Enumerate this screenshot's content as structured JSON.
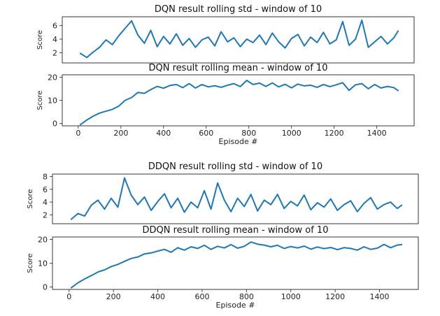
{
  "chart_data": [
    {
      "type": "line",
      "title": "DQN result rolling std - window of 10",
      "ylabel": "Score",
      "xlabel": "",
      "xlim": [
        -75,
        1575
      ],
      "ylim": [
        0.5,
        7.3
      ],
      "yticks": [
        2,
        4,
        6
      ],
      "xticks": [],
      "series_color": "#1f77b4",
      "series": [
        {
          "x": [
            10,
            40,
            70,
            100,
            130,
            160,
            190,
            220,
            250,
            280,
            310,
            340,
            370,
            400,
            430,
            460,
            490,
            520,
            550,
            580,
            610,
            640,
            670,
            700,
            730,
            760,
            790,
            820,
            850,
            880,
            910,
            940,
            970,
            1000,
            1030,
            1060,
            1090,
            1120,
            1150,
            1180,
            1210,
            1240,
            1270,
            1300,
            1330,
            1360,
            1390,
            1420,
            1450,
            1480,
            1500
          ],
          "values": [
            1.9,
            1.3,
            2.1,
            2.8,
            3.9,
            3.2,
            4.5,
            5.6,
            6.7,
            4.6,
            3.4,
            5.3,
            2.9,
            4.4,
            3.3,
            4.8,
            3.1,
            4.1,
            2.8,
            3.9,
            4.3,
            3.0,
            5.1,
            3.6,
            4.2,
            2.9,
            4.0,
            3.5,
            4.6,
            3.2,
            4.9,
            3.6,
            2.7,
            4.1,
            4.7,
            3.0,
            4.3,
            3.5,
            5.0,
            3.3,
            3.9,
            6.6,
            3.1,
            4.0,
            6.8,
            2.8,
            3.6,
            4.4,
            3.3,
            4.2,
            5.2
          ]
        }
      ]
    },
    {
      "type": "line",
      "title": "DQN result rolling mean - window of 10",
      "ylabel": "Score",
      "xlabel": "Episode #",
      "xlim": [
        -75,
        1575
      ],
      "ylim": [
        -1,
        21
      ],
      "yticks": [
        0,
        10,
        20
      ],
      "xticks": [
        0,
        200,
        400,
        600,
        800,
        1000,
        1200,
        1400
      ],
      "series_color": "#1f77b4",
      "series": [
        {
          "x": [
            10,
            40,
            70,
            100,
            130,
            160,
            190,
            220,
            250,
            280,
            310,
            340,
            370,
            400,
            430,
            460,
            490,
            520,
            550,
            580,
            610,
            640,
            670,
            700,
            730,
            760,
            790,
            820,
            850,
            880,
            910,
            940,
            970,
            1000,
            1030,
            1060,
            1090,
            1120,
            1150,
            1180,
            1210,
            1240,
            1270,
            1300,
            1330,
            1360,
            1390,
            1420,
            1450,
            1480,
            1500
          ],
          "values": [
            -0.5,
            1.5,
            3.2,
            4.5,
            5.3,
            6.1,
            7.5,
            10.0,
            11.2,
            13.4,
            13.0,
            14.6,
            16.0,
            15.2,
            16.4,
            16.8,
            15.5,
            17.2,
            15.3,
            16.8,
            15.8,
            16.3,
            15.6,
            16.5,
            17.2,
            15.9,
            18.6,
            16.8,
            17.4,
            16.0,
            17.5,
            15.8,
            16.9,
            15.4,
            17.0,
            16.2,
            16.5,
            15.6,
            16.8,
            15.9,
            16.7,
            17.6,
            14.3,
            16.7,
            17.2,
            15.0,
            16.8,
            15.3,
            16.0,
            15.5,
            14.2
          ]
        }
      ]
    },
    {
      "type": "line",
      "title": "DDQN result rolling std - window of 10",
      "ylabel": "Score",
      "xlabel": "",
      "xlim": [
        -75,
        1575
      ],
      "ylim": [
        0.6,
        8.4
      ],
      "yticks": [
        2,
        4,
        6,
        8
      ],
      "xticks": [],
      "series_color": "#1f77b4",
      "series": [
        {
          "x": [
            10,
            40,
            70,
            100,
            130,
            160,
            190,
            220,
            250,
            280,
            310,
            340,
            370,
            400,
            430,
            460,
            490,
            520,
            550,
            580,
            610,
            640,
            670,
            700,
            730,
            760,
            790,
            820,
            850,
            880,
            910,
            940,
            970,
            1000,
            1030,
            1060,
            1090,
            1120,
            1150,
            1180,
            1210,
            1240,
            1270,
            1300,
            1330,
            1360,
            1390,
            1420,
            1450,
            1480,
            1500
          ],
          "values": [
            1.3,
            2.2,
            1.8,
            3.5,
            4.3,
            2.9,
            4.6,
            3.2,
            7.8,
            5.1,
            3.6,
            4.8,
            2.7,
            4.1,
            5.3,
            3.1,
            4.6,
            2.4,
            4.0,
            3.1,
            5.8,
            2.9,
            7.0,
            4.3,
            2.5,
            4.6,
            3.3,
            5.2,
            2.6,
            4.3,
            3.6,
            5.2,
            3.0,
            4.1,
            3.4,
            5.1,
            2.8,
            3.9,
            3.2,
            4.5,
            2.7,
            3.6,
            4.2,
            2.5,
            3.8,
            4.7,
            2.9,
            3.6,
            4.0,
            3.0,
            3.5
          ]
        }
      ]
    },
    {
      "type": "line",
      "title": "DDQN result rolling mean - window of 10",
      "ylabel": "Score",
      "xlabel": "Episode #",
      "xlim": [
        -75,
        1575
      ],
      "ylim": [
        -1,
        21
      ],
      "yticks": [
        0,
        10,
        20
      ],
      "xticks": [
        0,
        200,
        400,
        600,
        800,
        1000,
        1200,
        1400
      ],
      "series_color": "#1f77b4",
      "series": [
        {
          "x": [
            10,
            40,
            70,
            100,
            130,
            160,
            190,
            220,
            250,
            280,
            310,
            340,
            370,
            400,
            430,
            460,
            490,
            520,
            550,
            580,
            610,
            640,
            670,
            700,
            730,
            760,
            790,
            820,
            850,
            880,
            910,
            940,
            970,
            1000,
            1030,
            1060,
            1090,
            1120,
            1150,
            1180,
            1210,
            1240,
            1270,
            1300,
            1330,
            1360,
            1390,
            1420,
            1450,
            1480,
            1500
          ],
          "values": [
            -0.3,
            1.8,
            3.4,
            4.8,
            6.3,
            7.2,
            8.6,
            9.5,
            10.8,
            12.0,
            12.6,
            13.9,
            14.3,
            15.1,
            15.8,
            14.6,
            16.5,
            15.5,
            16.9,
            16.2,
            17.5,
            15.8,
            17.1,
            16.4,
            17.8,
            16.3,
            17.1,
            18.9,
            18.0,
            17.6,
            16.9,
            17.5,
            16.2,
            17.0,
            16.4,
            17.2,
            15.9,
            16.8,
            16.1,
            16.6,
            15.7,
            16.5,
            16.2,
            15.5,
            16.9,
            15.8,
            16.3,
            17.9,
            16.5,
            17.6,
            17.8
          ]
        }
      ]
    }
  ]
}
